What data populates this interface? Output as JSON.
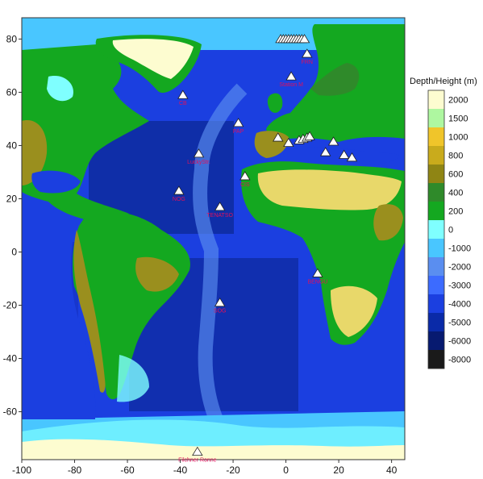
{
  "map": {
    "extent": {
      "lon": [
        -100,
        45
      ],
      "lat": [
        -78,
        88
      ]
    },
    "colors": {
      "ocean_deep": "#0b1f7a",
      "ocean_mid": "#1b3fe0",
      "ocean_shallow": "#1aa2ff",
      "ocean_shelf": "#7fffff",
      "land_green": "#14a820",
      "land_olive": "#9a8f1e",
      "land_yellow": "#e8d86a",
      "ice": "#fdfcd0",
      "marker_fill": "#ffffff",
      "marker_stroke": "#222222",
      "label": "#e0105a"
    },
    "colorbar": {
      "title": "Depth/Height (m)",
      "levels": [
        {
          "label": "2000",
          "color": "#fdfcd0"
        },
        {
          "label": "1500",
          "color": "#aef7a0"
        },
        {
          "label": "1000",
          "color": "#f0c52a"
        },
        {
          "label": "800",
          "color": "#c9ab1c"
        },
        {
          "label": "600",
          "color": "#8f8514"
        },
        {
          "label": "400",
          "color": "#2f8a2a"
        },
        {
          "label": "200",
          "color": "#14a820"
        },
        {
          "label": "0",
          "color": "#7fffff"
        },
        {
          "label": "-1000",
          "color": "#49c6ff"
        },
        {
          "label": "-2000",
          "color": "#5a8ef0"
        },
        {
          "label": "-3000",
          "color": "#3c6bff"
        },
        {
          "label": "-4000",
          "color": "#1b3fe0"
        },
        {
          "label": "-5000",
          "color": "#0a2aa8"
        },
        {
          "label": "-6000",
          "color": "#071a70"
        },
        {
          "label": "-8000",
          "color": "#1a1a1a"
        }
      ]
    },
    "x_ticks": [
      -100,
      -80,
      -60,
      -40,
      -20,
      0,
      20,
      40
    ],
    "y_ticks": [
      80,
      60,
      40,
      20,
      0,
      -20,
      -40,
      -60
    ],
    "sites": [
      {
        "lon": -39,
        "lat": 59,
        "label": "CB"
      },
      {
        "lon": -33,
        "lat": 37,
        "label": "LuckyStr."
      },
      {
        "lon": -18,
        "lat": 48.5,
        "label": "PAP"
      },
      {
        "lon": -40.5,
        "lat": 23,
        "label": "NOG"
      },
      {
        "lon": -25,
        "lat": 17,
        "label": "TENATSO"
      },
      {
        "lon": -15.5,
        "lat": 28.5,
        "label": "CIS"
      },
      {
        "lon": 2,
        "lat": 66,
        "label": "Station M"
      },
      {
        "lon": 8,
        "lat": 74.5,
        "label": "FRN"
      },
      {
        "lon": 12,
        "lat": -8,
        "label": "BENGU"
      },
      {
        "lon": -25,
        "lat": -19,
        "label": "SOG"
      },
      {
        "lon": -33.5,
        "lat": -75,
        "label": "Filchner Ronne"
      },
      {
        "lon": -3,
        "lat": 43,
        "label": ""
      },
      {
        "lon": 1,
        "lat": 41,
        "label": ""
      },
      {
        "lon": 5,
        "lat": 42,
        "label": ""
      },
      {
        "lon": 6.5,
        "lat": 42.5,
        "label": ""
      },
      {
        "lon": 8,
        "lat": 43,
        "label": ""
      },
      {
        "lon": 9,
        "lat": 43.5,
        "label": ""
      },
      {
        "lon": 15,
        "lat": 37.5,
        "label": ""
      },
      {
        "lon": 18,
        "lat": 41.5,
        "label": ""
      },
      {
        "lon": 22,
        "lat": 36.5,
        "label": ""
      },
      {
        "lon": 25,
        "lat": 35.5,
        "label": ""
      },
      {
        "lon": -2,
        "lat": 80,
        "label": ""
      },
      {
        "lon": -1,
        "lat": 80,
        "label": ""
      },
      {
        "lon": 0,
        "lat": 80,
        "label": ""
      },
      {
        "lon": 1,
        "lat": 80,
        "label": ""
      },
      {
        "lon": 2,
        "lat": 80,
        "label": ""
      },
      {
        "lon": 3,
        "lat": 80,
        "label": ""
      },
      {
        "lon": 4,
        "lat": 80,
        "label": ""
      },
      {
        "lon": 5,
        "lat": 80,
        "label": ""
      },
      {
        "lon": 6,
        "lat": 80,
        "label": ""
      },
      {
        "lon": 7,
        "lat": 80,
        "label": ""
      }
    ]
  }
}
